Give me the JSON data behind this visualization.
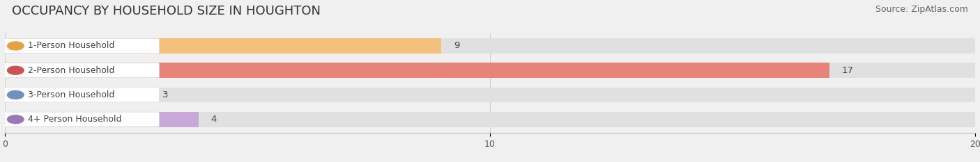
{
  "title": "OCCUPANCY BY HOUSEHOLD SIZE IN HOUGHTON",
  "source": "Source: ZipAtlas.com",
  "categories": [
    "1-Person Household",
    "2-Person Household",
    "3-Person Household",
    "4+ Person Household"
  ],
  "values": [
    9,
    17,
    3,
    4
  ],
  "bar_colors": [
    "#f5c07a",
    "#e8837a",
    "#b0c8e8",
    "#c8a8d8"
  ],
  "dot_colors": [
    "#e8a040",
    "#d05050",
    "#7090c0",
    "#9878b8"
  ],
  "xlim": [
    0,
    20
  ],
  "xticks": [
    0,
    10,
    20
  ],
  "background_color": "#f0f0f0",
  "bar_bg_color": "#e0e0e0",
  "label_bg_color": "#ffffff",
  "title_fontsize": 13,
  "source_fontsize": 9,
  "label_fontsize": 9,
  "value_fontsize": 9.5
}
